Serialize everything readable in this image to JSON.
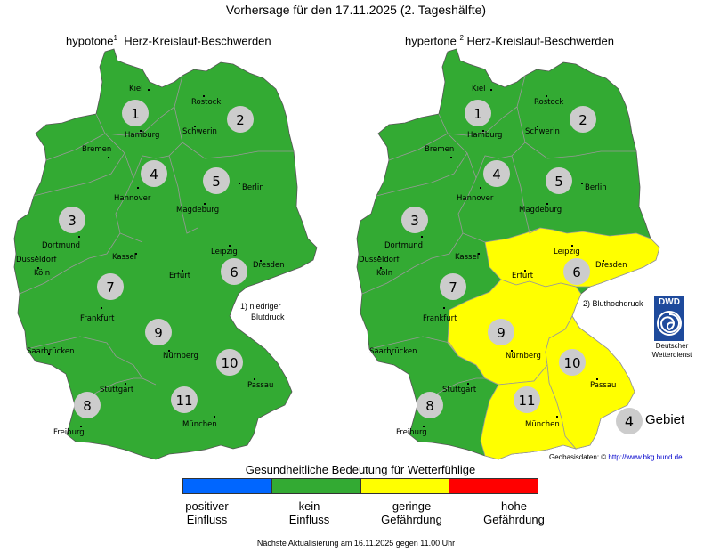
{
  "title": "Vorhersage für den 17.11.2025 (2. Tageshälfte)",
  "colors": {
    "positive": "#0066ff",
    "none": "#33aa33",
    "low": "#ffff00",
    "high": "#ff0000",
    "region_circle": "#cccccc",
    "border": "#999999"
  },
  "maps": [
    {
      "title": "hypotone",
      "title_sup": "1",
      "title_rest": "Herz-Kreislauf-Beschwerden",
      "note_line1": "1) niedriger",
      "note_line2": "Blutdruck",
      "regions": [
        {
          "id": "1",
          "level": "none"
        },
        {
          "id": "2",
          "level": "none"
        },
        {
          "id": "3",
          "level": "none"
        },
        {
          "id": "4",
          "level": "none"
        },
        {
          "id": "5",
          "level": "none"
        },
        {
          "id": "6",
          "level": "none"
        },
        {
          "id": "7",
          "level": "none"
        },
        {
          "id": "8",
          "level": "none"
        },
        {
          "id": "9",
          "level": "none"
        },
        {
          "id": "10",
          "level": "none"
        },
        {
          "id": "11",
          "level": "none"
        }
      ]
    },
    {
      "title": "hypertone",
      "title_sup": "2",
      "title_rest": "Herz-Kreislauf-Beschwerden",
      "note_line1": "2) Bluthochdruck",
      "regions": [
        {
          "id": "1",
          "level": "none"
        },
        {
          "id": "2",
          "level": "none"
        },
        {
          "id": "3",
          "level": "none"
        },
        {
          "id": "4",
          "level": "none"
        },
        {
          "id": "5",
          "level": "none"
        },
        {
          "id": "6",
          "level": "low"
        },
        {
          "id": "7",
          "level": "none"
        },
        {
          "id": "8",
          "level": "none"
        },
        {
          "id": "9",
          "level": "low"
        },
        {
          "id": "10",
          "level": "low"
        },
        {
          "id": "11",
          "level": "low"
        }
      ]
    }
  ],
  "cities": [
    "Kiel",
    "Rostock",
    "Hamburg",
    "Schwerin",
    "Bremen",
    "Hannover",
    "Berlin",
    "Magdeburg",
    "Dortmund",
    "Düsseldorf",
    "Köln",
    "Kassel",
    "Leipzig",
    "Dresden",
    "Erfurt",
    "Frankfurt",
    "Saarbrücken",
    "Nürnberg",
    "Stuttgart",
    "Passau",
    "Freiburg",
    "München"
  ],
  "legend": {
    "title": "Gesundheitliche Bedeutung für Wetterfühlige",
    "items": [
      {
        "line1": "positiver",
        "line2": "Einfluss"
      },
      {
        "line1": "kein",
        "line2": "Einfluss"
      },
      {
        "line1": "geringe",
        "line2": "Gefährdung"
      },
      {
        "line1": "hohe",
        "line2": "Gefährdung"
      }
    ]
  },
  "gebiet_example": {
    "number": "4",
    "label": "Gebiet"
  },
  "dwd": {
    "logo_text": "DWD",
    "caption_line1": "Deutscher",
    "caption_line2": "Wetterdienst"
  },
  "geobasis": {
    "prefix": "Geobasisdaten: ©",
    "url": "http://www.bkg.bund.de"
  },
  "footer": "Nächste Aktualisierung am 16.11.2025 gegen 11.00 Uhr"
}
